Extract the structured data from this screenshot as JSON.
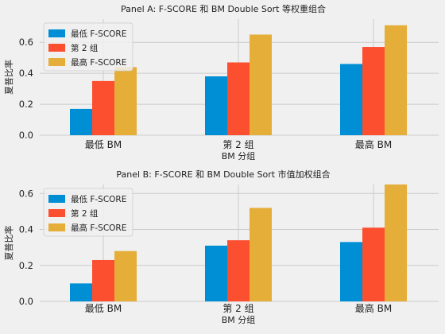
{
  "colors": {
    "low": "#008fd5",
    "mid": "#fc4f30",
    "high": "#e5ae38",
    "grid": "#cbcbcb",
    "background": "#f0f0f0"
  },
  "chart_data": [
    {
      "type": "bar",
      "title": "Panel A: F-SCORE 和 BM Double Sort 等权重组合",
      "xlabel": "BM 分组",
      "ylabel": "夏普比率",
      "categories": [
        "最低 BM",
        "第 2 组",
        "最高 BM"
      ],
      "series": [
        {
          "name": "最低 F-SCORE",
          "values": [
            0.17,
            0.38,
            0.46
          ]
        },
        {
          "name": "第 2 组",
          "values": [
            0.35,
            0.47,
            0.57
          ]
        },
        {
          "name": "最高 F-SCORE",
          "values": [
            0.44,
            0.65,
            0.71
          ]
        }
      ],
      "yticks": [
        "0.0",
        "0.2",
        "0.4",
        "0.6"
      ],
      "ylim": [
        0,
        0.75
      ],
      "grid": true,
      "legend": "top-left"
    },
    {
      "type": "bar",
      "title": "Panel B: F-SCORE 和 BM Double Sort 市值加权组合",
      "xlabel": "BM 分组",
      "ylabel": "夏普比率",
      "categories": [
        "最低 BM",
        "第 2 组",
        "最高 BM"
      ],
      "series": [
        {
          "name": "最低 F-SCORE",
          "values": [
            0.1,
            0.31,
            0.33
          ]
        },
        {
          "name": "第 2 组",
          "values": [
            0.23,
            0.34,
            0.41
          ]
        },
        {
          "name": "最高 F-SCORE",
          "values": [
            0.28,
            0.52,
            0.65
          ]
        }
      ],
      "yticks": [
        "0.0",
        "0.2",
        "0.4",
        "0.6"
      ],
      "ylim": [
        0,
        0.65
      ],
      "grid": true,
      "legend": "top-left"
    }
  ]
}
